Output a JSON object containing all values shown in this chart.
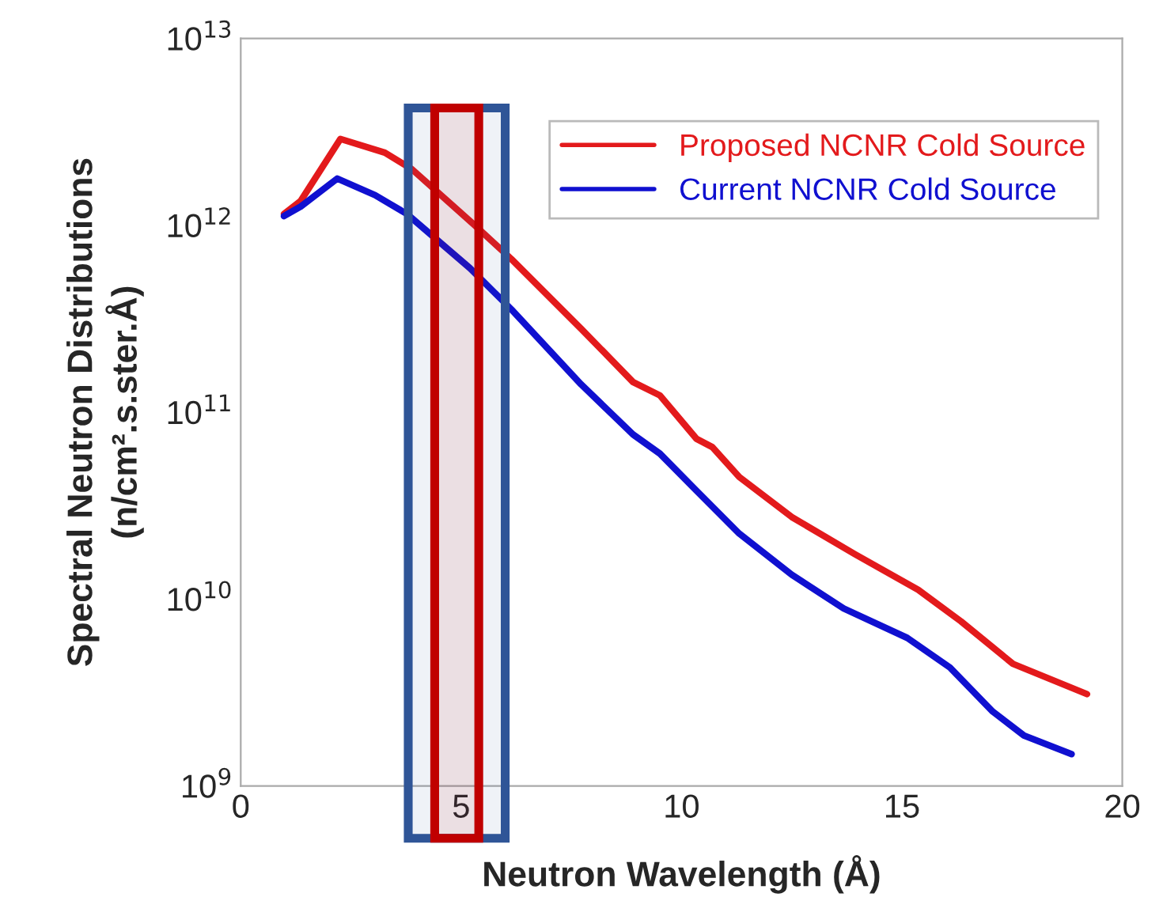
{
  "chart_data": {
    "type": "line",
    "xlabel": "Neutron Wavelength (Å)",
    "ylabel": "Spectral Neutron Distributions\n(n/cm².s.ster.Å)",
    "log": "y",
    "xlim": [
      0,
      20
    ],
    "xticks": [
      0,
      5,
      10,
      15,
      20
    ],
    "ylim": [
      1000000000.0,
      10000000000000.0
    ],
    "yticks": [
      {
        "value": 1000000000.0,
        "label": "10$^{9}$"
      },
      {
        "value": 10000000000.0,
        "label": "10$^{10}$"
      },
      {
        "value": 100000000000.0,
        "label": "10$^{11}$"
      },
      {
        "value": 1000000000000.0,
        "label": "10$^{12}$"
      },
      {
        "value": 10000000000000.0,
        "label": "10$^{13}$"
      }
    ],
    "bands": [
      {
        "axis": "x",
        "from": 3.8,
        "to": 6.0,
        "color": "#2f5597"
      },
      {
        "axis": "x",
        "from": 4.4,
        "to": 5.4,
        "color": "#c00000"
      }
    ],
    "grid": false,
    "legend": "top right",
    "line_style": "solid",
    "marker": "none",
    "series": [
      {
        "name": "Proposed NCNR Cold Source",
        "color": "#e31a1c",
        "x": [
          0.98,
          1.36,
          2.26,
          3.27,
          3.88,
          5.31,
          6.14,
          7.72,
          8.9,
          9.51,
          10.34,
          10.7,
          11.31,
          12.5,
          13.93,
          15.37,
          16.34,
          17.52,
          19.2
        ],
        "values": [
          1150000000000.0,
          1350000000000.0,
          2900000000000.0,
          2450000000000.0,
          2000000000000.0,
          1000000000000.0,
          660000000000.0,
          280000000000.0,
          145000000000.0,
          123000000000.0,
          72000000000.0,
          65000000000.0,
          45000000000.0,
          27500000000.0,
          17400000000.0,
          11200000000.0,
          7600000000.0,
          4500000000.0,
          3100000000.0
        ]
      },
      {
        "name": "Current NCNR Cold Source",
        "color": "#1010d0",
        "x": [
          0.98,
          1.36,
          2.19,
          3.05,
          3.77,
          5.2,
          6.14,
          7.72,
          8.9,
          9.51,
          10.34,
          11.31,
          12.5,
          13.68,
          15.12,
          16.09,
          17.06,
          17.77,
          18.85
        ],
        "values": [
          1120000000000.0,
          1260000000000.0,
          1780000000000.0,
          1450000000000.0,
          1150000000000.0,
          590000000000.0,
          355000000000.0,
          141000000000.0,
          76000000000.0,
          60000000000.0,
          38000000000.0,
          22400000000.0,
          13500000000.0,
          8900000000.0,
          6200000000.0,
          4300000000.0,
          2500000000.0,
          1860000000.0,
          1480000000.0
        ]
      }
    ]
  }
}
